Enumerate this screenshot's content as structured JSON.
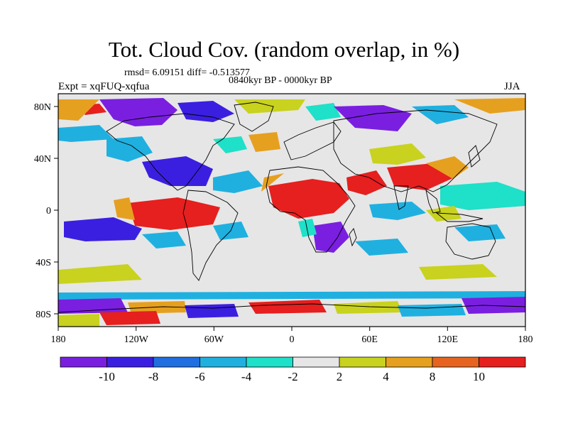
{
  "title": "Tot. Cloud Cov. (random overlap, in %)",
  "stats_line": "rmsd= 6.09151 diff= -0.513577",
  "period": "0840kyr BP - 0000kyr BP",
  "experiment": "Expt = xqFUQ-xqfua",
  "season": "JJA",
  "lon_ticks": [
    "180",
    "120W",
    "60W",
    "0",
    "60E",
    "120E",
    "180"
  ],
  "lat_ticks": [
    "80N",
    "40N",
    "0",
    "40S",
    "80S"
  ],
  "colorbar": {
    "labels": [
      "-10",
      "-8",
      "-6",
      "-4",
      "-2",
      "2",
      "4",
      "8",
      "10"
    ],
    "colors": [
      "#7a1fe0",
      "#3b1fe0",
      "#1f6fe0",
      "#1fb0e0",
      "#1fe0c8",
      "#e6e6e6",
      "#c8d21f",
      "#e6a01f",
      "#e6641f",
      "#e61f1f"
    ]
  },
  "map_colors": {
    "background": "#e6e6e6",
    "violet": "#7a1fe0",
    "blue": "#3b1fe0",
    "mid_blue": "#1f6fe0",
    "cyan": "#1fb0e0",
    "teal": "#1fe0c8",
    "yellow": "#c8d21f",
    "orange": "#e6a01f",
    "dark_orange": "#e6641f",
    "red": "#e61f1f",
    "coast": "#000000"
  }
}
